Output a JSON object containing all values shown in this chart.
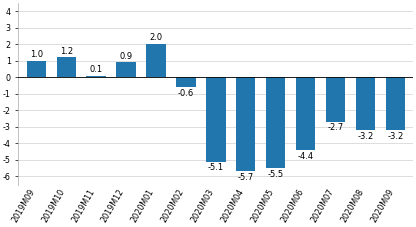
{
  "categories": [
    "2019M09",
    "2019M10",
    "2019M11",
    "2019M12",
    "2020M01",
    "2020M02",
    "2020M03",
    "2020M04",
    "2020M05",
    "2020M06",
    "2020M07",
    "2020M08",
    "2020M09"
  ],
  "values": [
    1.0,
    1.2,
    0.1,
    0.9,
    2.0,
    -0.6,
    -5.1,
    -5.7,
    -5.5,
    -4.4,
    -2.7,
    -3.2,
    -3.2
  ],
  "bar_color": "#2176ae",
  "ylim": [
    -6.5,
    4.5
  ],
  "yticks": [
    -6,
    -5,
    -4,
    -3,
    -2,
    -1,
    0,
    1,
    2,
    3,
    4
  ],
  "label_fontsize": 6.0,
  "tick_fontsize": 5.8,
  "background_color": "#ffffff"
}
